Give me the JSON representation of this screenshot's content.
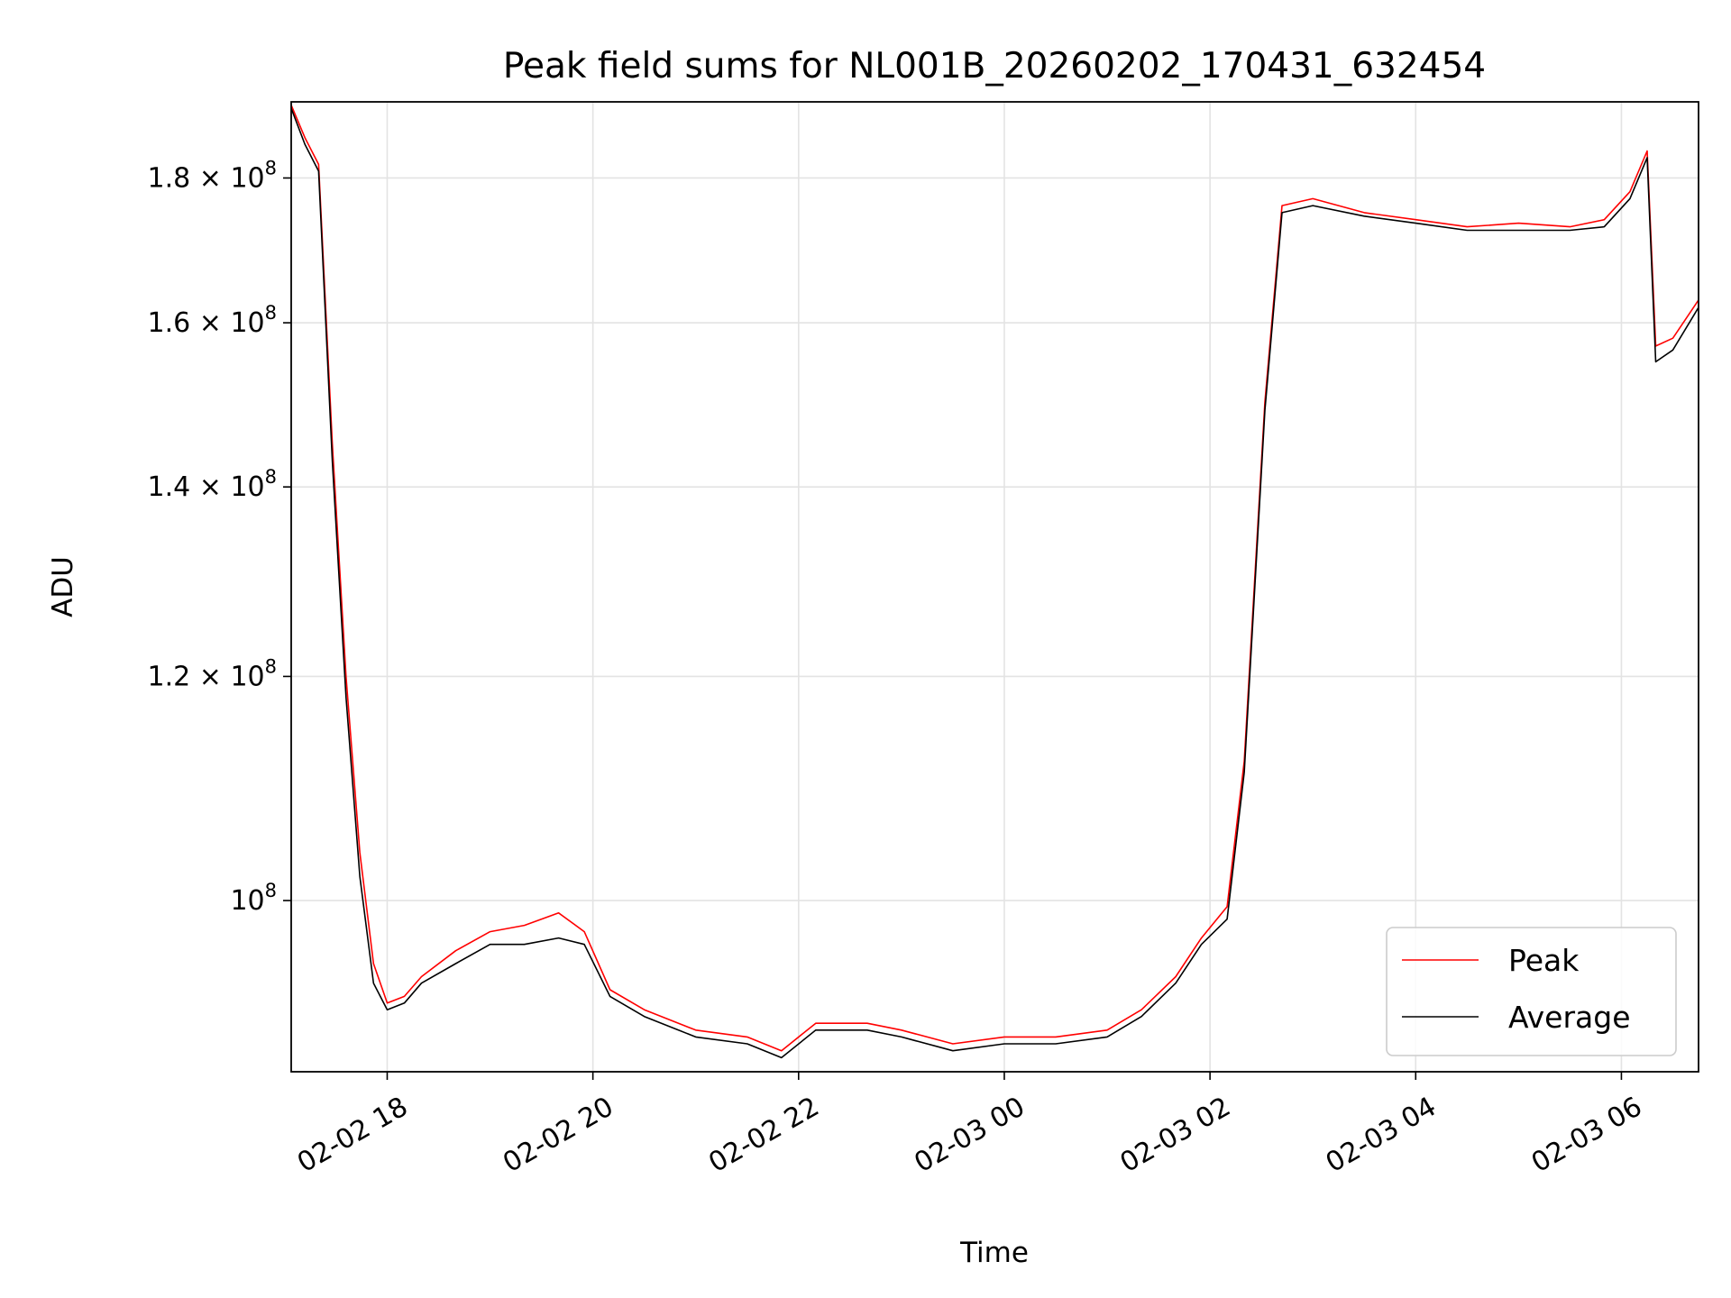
{
  "chart_data": {
    "type": "line",
    "title": "Peak field sums for NL001B_20260202_170431_632454",
    "xlabel": "Time",
    "ylabel": "ADU",
    "y_scale": "log",
    "ylim": [
      87000000,
      191500000
    ],
    "xlim": [
      "2026-02-02 17:04",
      "2026-02-03 06:45"
    ],
    "grid": true,
    "legend_position": "lower-right",
    "x_ticks": [
      {
        "t": "2026-02-02 18:00",
        "label": "02-02 18"
      },
      {
        "t": "2026-02-02 20:00",
        "label": "02-02 20"
      },
      {
        "t": "2026-02-02 22:00",
        "label": "02-02 22"
      },
      {
        "t": "2026-02-03 00:00",
        "label": "02-03 00"
      },
      {
        "t": "2026-02-03 02:00",
        "label": "02-03 02"
      },
      {
        "t": "2026-02-03 04:00",
        "label": "02-03 04"
      },
      {
        "t": "2026-02-03 06:00",
        "label": "02-03 06"
      }
    ],
    "y_ticks": [
      {
        "v": 100000000,
        "base": "10",
        "exp": "8"
      },
      {
        "v": 120000000,
        "base": "1.2 × 10",
        "exp": "8"
      },
      {
        "v": 140000000,
        "base": "1.4 × 10",
        "exp": "8"
      },
      {
        "v": 160000000,
        "base": "1.6 × 10",
        "exp": "8"
      },
      {
        "v": 180000000,
        "base": "1.8 × 10",
        "exp": "8"
      }
    ],
    "series": [
      {
        "name": "Peak",
        "color": "#ff0000",
        "x": [
          "2026-02-02 17:04",
          "2026-02-02 17:12",
          "2026-02-02 17:20",
          "2026-02-02 17:28",
          "2026-02-02 17:36",
          "2026-02-02 17:44",
          "2026-02-02 17:52",
          "2026-02-02 18:00",
          "2026-02-02 18:10",
          "2026-02-02 18:20",
          "2026-02-02 18:40",
          "2026-02-02 19:00",
          "2026-02-02 19:20",
          "2026-02-02 19:40",
          "2026-02-02 19:55",
          "2026-02-02 20:10",
          "2026-02-02 20:30",
          "2026-02-02 21:00",
          "2026-02-02 21:30",
          "2026-02-02 21:50",
          "2026-02-02 22:10",
          "2026-02-02 22:40",
          "2026-02-02 23:00",
          "2026-02-02 23:30",
          "2026-02-03 00:00",
          "2026-02-03 00:30",
          "2026-02-03 01:00",
          "2026-02-03 01:20",
          "2026-02-03 01:40",
          "2026-02-03 01:55",
          "2026-02-03 02:10",
          "2026-02-03 02:20",
          "2026-02-03 02:32",
          "2026-02-03 02:42",
          "2026-02-03 03:00",
          "2026-02-03 03:30",
          "2026-02-03 04:00",
          "2026-02-03 04:30",
          "2026-02-03 05:00",
          "2026-02-03 05:30",
          "2026-02-03 05:50",
          "2026-02-03 06:05",
          "2026-02-03 06:15",
          "2026-02-03 06:20",
          "2026-02-03 06:30",
          "2026-02-03 06:45"
        ],
        "y": [
          191000000,
          186000000,
          182000000,
          145000000,
          120000000,
          104000000,
          95000000,
          92000000,
          92500000,
          94000000,
          96000000,
          97500000,
          98000000,
          99000000,
          97500000,
          93000000,
          91500000,
          90000000,
          89500000,
          88500000,
          90500000,
          90500000,
          90000000,
          89000000,
          89500000,
          89500000,
          90000000,
          91500000,
          94000000,
          97000000,
          99500000,
          112000000,
          150000000,
          176000000,
          177000000,
          175000000,
          174000000,
          173000000,
          173500000,
          173000000,
          174000000,
          178000000,
          184000000,
          157000000,
          158000000,
          163000000
        ]
      },
      {
        "name": "Average",
        "color": "#000000",
        "x": [
          "2026-02-02 17:04",
          "2026-02-02 17:12",
          "2026-02-02 17:20",
          "2026-02-02 17:28",
          "2026-02-02 17:36",
          "2026-02-02 17:44",
          "2026-02-02 17:52",
          "2026-02-02 18:00",
          "2026-02-02 18:10",
          "2026-02-02 18:20",
          "2026-02-02 18:40",
          "2026-02-02 19:00",
          "2026-02-02 19:20",
          "2026-02-02 19:40",
          "2026-02-02 19:55",
          "2026-02-02 20:10",
          "2026-02-02 20:30",
          "2026-02-02 21:00",
          "2026-02-02 21:30",
          "2026-02-02 21:50",
          "2026-02-02 22:10",
          "2026-02-02 22:40",
          "2026-02-02 23:00",
          "2026-02-02 23:30",
          "2026-02-03 00:00",
          "2026-02-03 00:30",
          "2026-02-03 01:00",
          "2026-02-03 01:20",
          "2026-02-03 01:40",
          "2026-02-03 01:55",
          "2026-02-03 02:10",
          "2026-02-03 02:20",
          "2026-02-03 02:32",
          "2026-02-03 02:42",
          "2026-02-03 03:00",
          "2026-02-03 03:30",
          "2026-02-03 04:00",
          "2026-02-03 04:30",
          "2026-02-03 05:00",
          "2026-02-03 05:30",
          "2026-02-03 05:50",
          "2026-02-03 06:05",
          "2026-02-03 06:15",
          "2026-02-03 06:20",
          "2026-02-03 06:30",
          "2026-02-03 06:45"
        ],
        "y": [
          190500000,
          185000000,
          181000000,
          143000000,
          118000000,
          102000000,
          93500000,
          91500000,
          92000000,
          93500000,
          95000000,
          96500000,
          96500000,
          97000000,
          96500000,
          92500000,
          91000000,
          89500000,
          89000000,
          88000000,
          90000000,
          90000000,
          89500000,
          88500000,
          89000000,
          89000000,
          89500000,
          91000000,
          93500000,
          96500000,
          98500000,
          111000000,
          149000000,
          175000000,
          176000000,
          174500000,
          173500000,
          172500000,
          172500000,
          172500000,
          173000000,
          177000000,
          183000000,
          155000000,
          156500000,
          162000000
        ]
      }
    ]
  }
}
